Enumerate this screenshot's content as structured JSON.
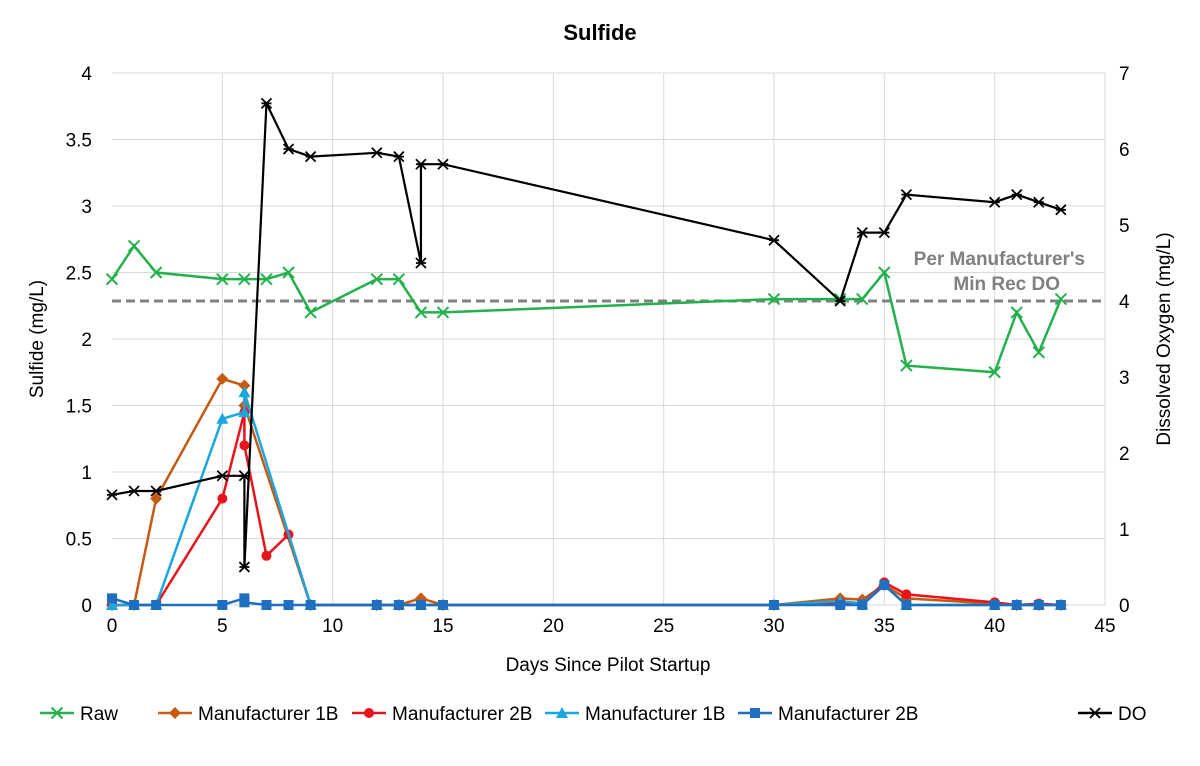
{
  "chart_data": {
    "type": "line",
    "title": "Sulfide",
    "xlabel": "Days Since Pilot Startup",
    "ylabel": "Sulfide (mg/L)",
    "y2label": "Dissolved Oxygen  (mg/L)",
    "xlim": [
      0,
      45
    ],
    "ylim": [
      0,
      4
    ],
    "y2lim": [
      0,
      7
    ],
    "xticks": [
      0,
      5,
      10,
      15,
      20,
      25,
      30,
      35,
      40,
      45
    ],
    "yticks": [
      0,
      0.5,
      1,
      1.5,
      2,
      2.5,
      3,
      3.5,
      4
    ],
    "y2ticks": [
      0,
      1,
      2,
      3,
      4,
      5,
      6,
      7
    ],
    "grid": true,
    "legend_position": "bottom",
    "reference_line": {
      "axis": "y2",
      "value": 4.0,
      "label_line1": "Per Manufacturer's",
      "label_line2": "Min Rec DO",
      "color": "#808080"
    },
    "series": [
      {
        "name": "Raw",
        "axis": "y",
        "color": "#22B14C",
        "marker": "x",
        "x": [
          0,
          1,
          2,
          5,
          6,
          7,
          8,
          9,
          12,
          13,
          14,
          15,
          30,
          33,
          34,
          35,
          36,
          40,
          41,
          42,
          43
        ],
        "y": [
          2.45,
          2.7,
          2.5,
          2.45,
          2.45,
          2.45,
          2.5,
          2.2,
          2.45,
          2.45,
          2.2,
          2.2,
          2.3,
          2.3,
          2.3,
          2.5,
          1.8,
          1.75,
          2.2,
          1.9,
          2.3
        ]
      },
      {
        "name": "Manufacturer 1B",
        "axis": "y",
        "color": "#C55A11",
        "marker": "diamond",
        "x": [
          0,
          1,
          2,
          5,
          6,
          6,
          9,
          12,
          13,
          14,
          15,
          30,
          33,
          34,
          35,
          36,
          40,
          41,
          42,
          43
        ],
        "y": [
          0,
          0,
          0.8,
          1.7,
          1.65,
          1.5,
          0,
          0,
          0,
          0.05,
          0,
          0,
          0.05,
          0.04,
          0.15,
          0.05,
          0.01,
          0,
          0,
          0
        ]
      },
      {
        "name": "Manufacturer 2B",
        "axis": "y",
        "color": "#E8141B",
        "marker": "circle",
        "x": [
          0,
          2,
          5,
          6,
          6,
          7,
          8,
          9,
          12,
          13,
          14,
          15,
          30,
          33,
          34,
          35,
          36,
          40,
          41,
          42,
          43
        ],
        "y": [
          0,
          0,
          0.8,
          1.45,
          1.2,
          0.37,
          0.53,
          0,
          0,
          0,
          0,
          0,
          0,
          0.02,
          0.01,
          0.17,
          0.08,
          0.02,
          0,
          0.01,
          0
        ]
      },
      {
        "name": "Manufacturer 1B",
        "axis": "y",
        "color": "#1AA7E0",
        "marker": "triangle",
        "x": [
          0,
          1,
          2,
          5,
          6,
          6,
          9,
          12,
          13,
          14,
          15,
          30,
          33,
          34,
          35,
          36,
          40,
          41,
          42,
          43
        ],
        "y": [
          0,
          0,
          0,
          1.4,
          1.45,
          1.6,
          0,
          0,
          0,
          0,
          0,
          0,
          0.03,
          0.01,
          0.15,
          0,
          0,
          0,
          0,
          0
        ]
      },
      {
        "name": "Manufacturer 2B",
        "axis": "y",
        "color": "#1F6FC0",
        "marker": "square",
        "x": [
          0,
          1,
          2,
          5,
          6,
          6,
          7,
          8,
          9,
          12,
          13,
          14,
          15,
          30,
          33,
          34,
          35,
          36,
          40,
          41,
          42,
          43
        ],
        "y": [
          0.05,
          0,
          0,
          0,
          0.05,
          0.02,
          0,
          0,
          0,
          0,
          0,
          0,
          0,
          0,
          0,
          0,
          0.15,
          0,
          0,
          0,
          0,
          0
        ]
      },
      {
        "name": "DO",
        "axis": "y2",
        "color": "#000000",
        "marker": "asterisk",
        "x": [
          0,
          1,
          2,
          5,
          6,
          6,
          7,
          8,
          9,
          12,
          13,
          14,
          14,
          15,
          30,
          33,
          34,
          35,
          36,
          40,
          41,
          42,
          43
        ],
        "y": [
          1.45,
          1.5,
          1.5,
          1.7,
          1.7,
          0.5,
          6.6,
          6.0,
          5.9,
          5.95,
          5.9,
          4.5,
          5.8,
          5.8,
          4.8,
          4.0,
          4.9,
          4.9,
          5.4,
          5.3,
          5.4,
          5.3,
          5.2
        ]
      }
    ]
  }
}
